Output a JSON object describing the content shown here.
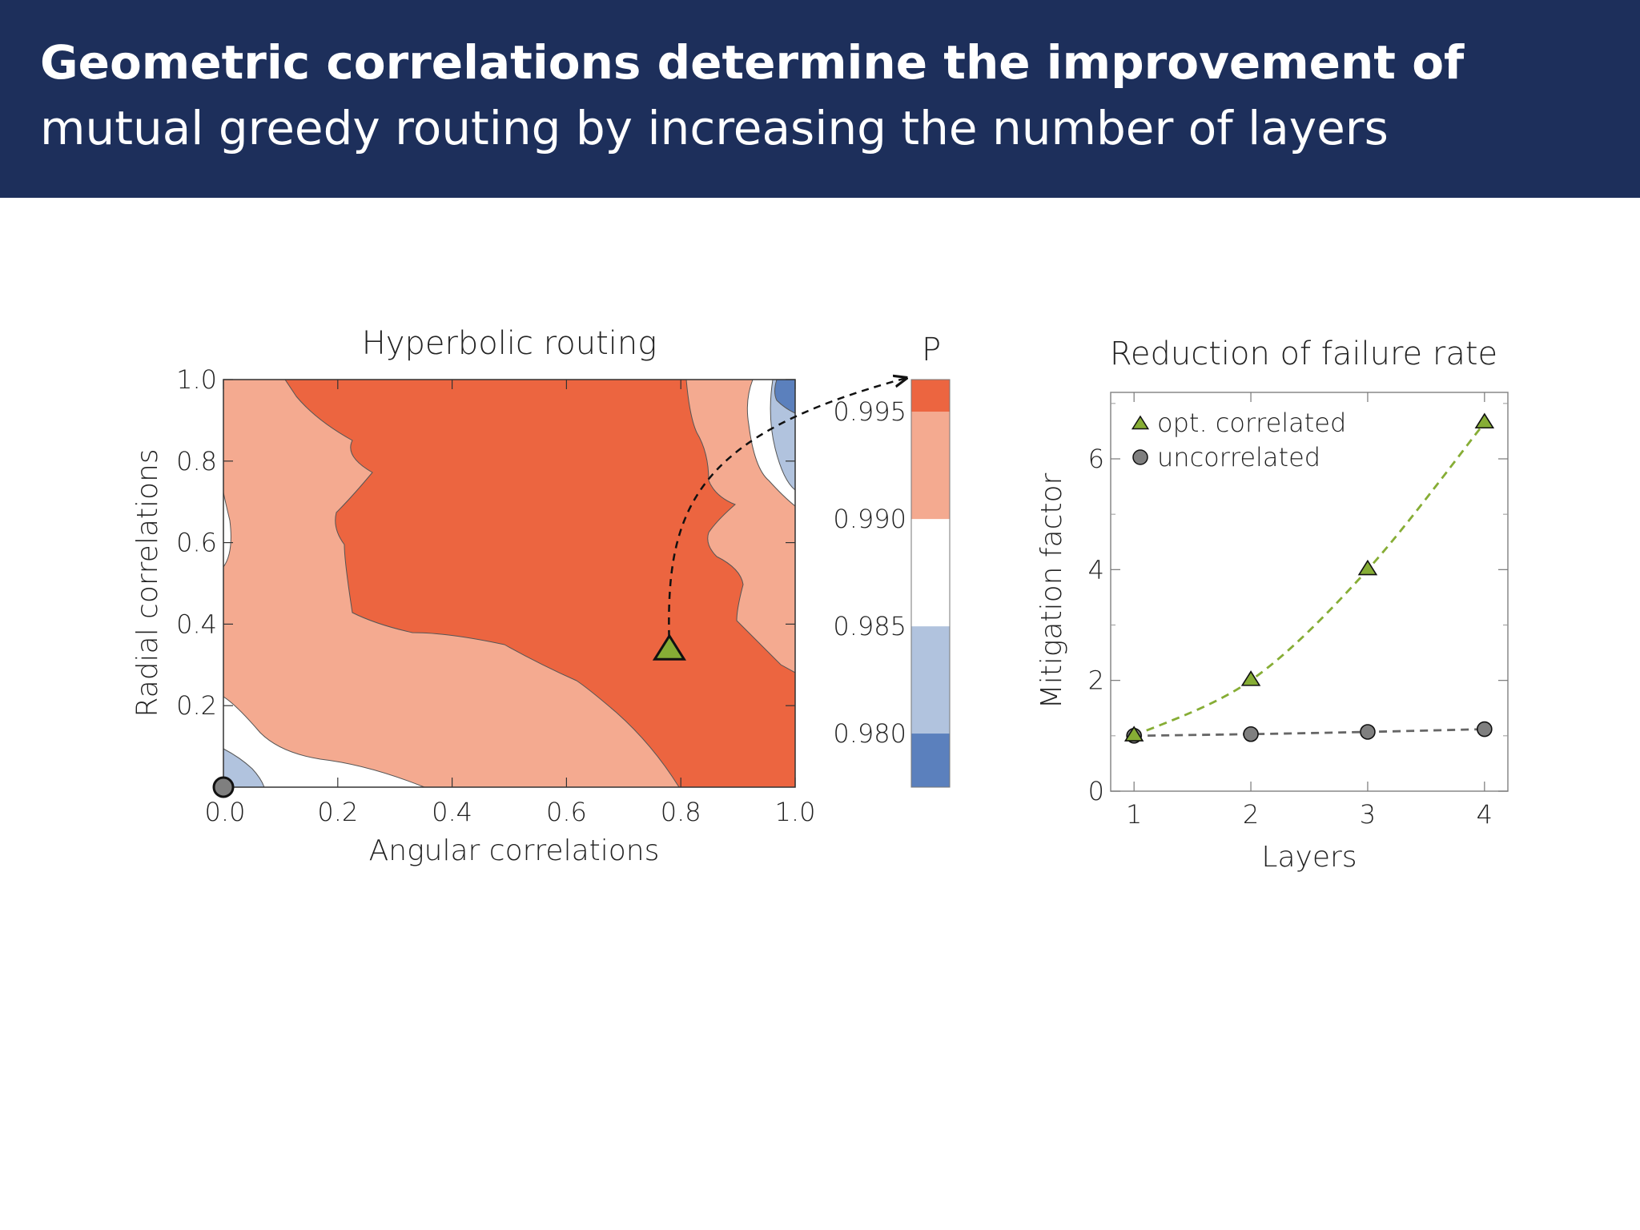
{
  "header": {
    "title_line1": "Geometric correlations determine the improvement of",
    "title_line2": "mutual greedy routing by increasing the number of layers",
    "background_color": "#1d2f5b"
  },
  "chart_data": [
    {
      "type": "contour",
      "title": "Hyperbolic routing",
      "xlabel": "Angular correlations",
      "ylabel": "Radial correlations",
      "xlim": [
        0.0,
        1.0
      ],
      "ylim": [
        0.0,
        1.0
      ],
      "xticks": [
        "0.0",
        "0.2",
        "0.4",
        "0.6",
        "0.8",
        "1.0"
      ],
      "yticks": [
        "0.2",
        "0.4",
        "0.6",
        "0.8",
        "1.0"
      ],
      "colorbar": {
        "label": "P",
        "range": [
          0.9775,
          0.9965
        ],
        "ticks": [
          "0.980",
          "0.985",
          "0.990",
          "0.995"
        ],
        "levels": [
          {
            "from": 0.9775,
            "to": 0.98,
            "color": "#5b80bd"
          },
          {
            "from": 0.98,
            "to": 0.985,
            "color": "#b1c3de"
          },
          {
            "from": 0.985,
            "to": 0.99,
            "color": "#ffffff"
          },
          {
            "from": 0.99,
            "to": 0.995,
            "color": "#f4aa90"
          },
          {
            "from": 0.995,
            "to": 0.9965,
            "color": "#ec6540"
          }
        ]
      },
      "markers": [
        {
          "name": "optimal-correlated",
          "shape": "triangle",
          "x": 0.78,
          "y": 0.33,
          "color": "#86ad35"
        },
        {
          "name": "uncorrelated",
          "shape": "circle",
          "x": 0.0,
          "y": 0.0,
          "color": "#7f7f7f"
        }
      ]
    },
    {
      "type": "line",
      "title": "Reduction of failure rate",
      "xlabel": "Layers",
      "ylabel": "Mitigation factor",
      "xlim": [
        0.8,
        4.2
      ],
      "ylim": [
        0,
        7.2
      ],
      "xticks": [
        1,
        2,
        3,
        4
      ],
      "yticks": [
        0,
        2,
        4,
        6
      ],
      "series": [
        {
          "name": "opt. correlated",
          "marker": "triangle",
          "color": "#86ad35",
          "x": [
            1,
            2,
            3,
            4
          ],
          "values": [
            1.0,
            2.0,
            4.0,
            6.65
          ]
        },
        {
          "name": "uncorrelated",
          "marker": "circle",
          "color": "#7f7f7f",
          "x": [
            1,
            2,
            3,
            4
          ],
          "values": [
            1.0,
            1.03,
            1.07,
            1.12
          ]
        }
      ],
      "legend": "top-left"
    }
  ]
}
